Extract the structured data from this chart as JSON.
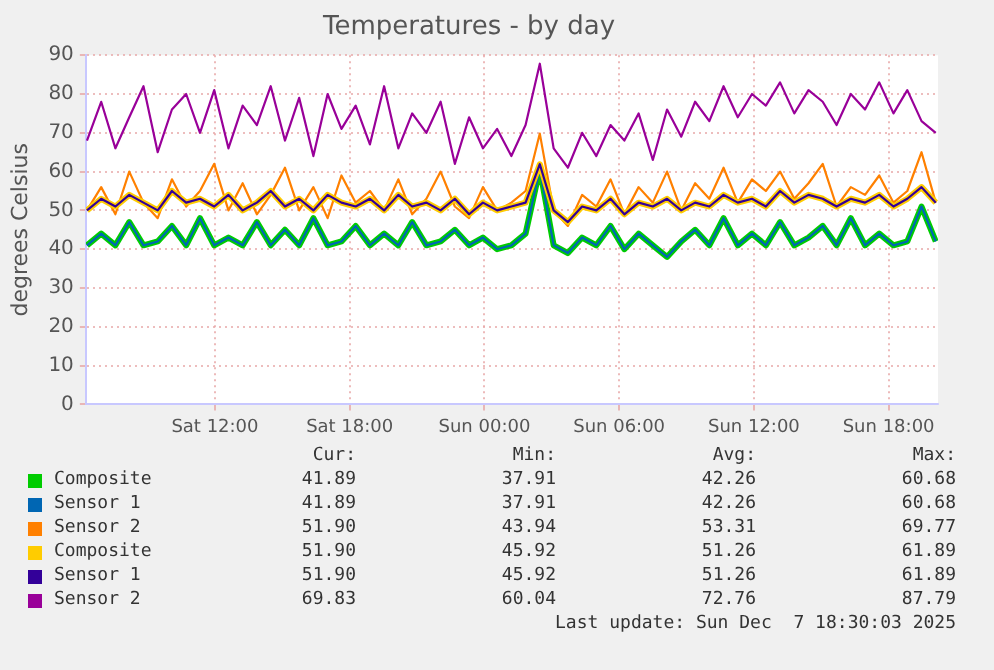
{
  "chart_data": {
    "type": "line",
    "title": "Temperatures - by day",
    "ylabel": "degrees Celsius",
    "x": [
      "2025-12-06T06:18",
      "2025-12-06T06:56",
      "2025-12-06T07:34",
      "2025-12-06T08:11",
      "2025-12-06T08:49",
      "2025-12-06T09:27",
      "2025-12-06T10:05",
      "2025-12-06T10:43",
      "2025-12-06T11:20",
      "2025-12-06T11:58",
      "2025-12-06T12:36",
      "2025-12-06T13:14",
      "2025-12-06T13:52",
      "2025-12-06T14:29",
      "2025-12-06T15:07",
      "2025-12-06T15:45",
      "2025-12-06T16:23",
      "2025-12-06T17:01",
      "2025-12-06T17:38",
      "2025-12-06T18:16",
      "2025-12-06T18:54",
      "2025-12-06T19:32",
      "2025-12-06T20:10",
      "2025-12-06T20:47",
      "2025-12-06T21:25",
      "2025-12-06T22:03",
      "2025-12-06T22:41",
      "2025-12-06T23:19",
      "2025-12-06T23:56",
      "2025-12-07T00:34",
      "2025-12-07T01:12",
      "2025-12-07T01:50",
      "2025-12-07T02:28",
      "2025-12-07T03:05",
      "2025-12-07T03:43",
      "2025-12-07T04:21",
      "2025-12-07T04:59",
      "2025-12-07T05:37",
      "2025-12-07T06:14",
      "2025-12-07T06:52",
      "2025-12-07T07:30",
      "2025-12-07T08:08",
      "2025-12-07T08:46",
      "2025-12-07T09:23",
      "2025-12-07T10:01",
      "2025-12-07T10:39",
      "2025-12-07T11:17",
      "2025-12-07T11:55",
      "2025-12-07T12:32",
      "2025-12-07T13:10",
      "2025-12-07T13:48",
      "2025-12-07T14:26",
      "2025-12-07T15:04",
      "2025-12-07T15:41",
      "2025-12-07T16:19",
      "2025-12-07T16:57",
      "2025-12-07T17:35",
      "2025-12-07T18:13",
      "2025-12-07T18:50",
      "2025-12-07T19:28",
      "2025-12-07T20:06"
    ],
    "xlim": [
      "2025-12-06T06:15",
      "2025-12-07T20:12"
    ],
    "xticks": [
      {
        "value": "2025-12-06T12:00",
        "label": "Sat 12:00"
      },
      {
        "value": "2025-12-06T18:00",
        "label": "Sat 18:00"
      },
      {
        "value": "2025-12-07T00:00",
        "label": "Sun 00:00"
      },
      {
        "value": "2025-12-07T06:00",
        "label": "Sun 06:00"
      },
      {
        "value": "2025-12-07T12:00",
        "label": "Sun 12:00"
      },
      {
        "value": "2025-12-07T18:00",
        "label": "Sun 18:00"
      }
    ],
    "ylim": [
      0,
      90
    ],
    "yticks": [
      0,
      10,
      20,
      30,
      40,
      50,
      60,
      70,
      80,
      90
    ],
    "grid": true,
    "legend": "bottom",
    "marker": "none",
    "line_style": "solid",
    "series": [
      {
        "name": "Composite",
        "color": "#00cc00",
        "values": [
          41,
          44,
          41,
          47,
          41,
          42,
          46,
          41,
          48,
          41,
          43,
          41,
          47,
          41,
          45,
          41,
          48,
          41,
          42,
          46,
          41,
          44,
          41,
          47,
          41,
          42,
          45,
          41,
          43,
          40,
          41,
          44,
          60.7,
          41,
          39,
          43,
          41,
          46,
          40,
          44,
          41,
          38,
          42,
          45,
          41,
          48,
          41,
          44,
          41,
          47,
          41,
          43,
          46,
          41,
          48,
          41,
          44,
          41,
          42,
          51,
          42
        ]
      },
      {
        "name": "Sensor 1",
        "color": "#0066b3",
        "values": [
          41,
          44,
          41,
          47,
          41,
          42,
          46,
          41,
          48,
          41,
          43,
          41,
          47,
          41,
          45,
          41,
          48,
          41,
          42,
          46,
          41,
          44,
          41,
          47,
          41,
          42,
          45,
          41,
          43,
          40,
          41,
          44,
          60.7,
          41,
          39,
          43,
          41,
          46,
          40,
          44,
          41,
          38,
          42,
          45,
          41,
          48,
          41,
          44,
          41,
          47,
          41,
          43,
          46,
          41,
          48,
          41,
          44,
          41,
          42,
          51,
          42
        ]
      },
      {
        "name": "Sensor 2",
        "color": "#ff8000",
        "values": [
          50,
          56,
          49,
          60,
          52,
          48,
          58,
          51,
          55,
          62,
          50,
          57,
          49,
          54,
          61,
          50,
          56,
          48,
          59,
          52,
          55,
          50,
          58,
          49,
          53,
          60,
          51,
          48,
          56,
          50,
          52,
          55,
          69.8,
          50,
          46,
          54,
          51,
          58,
          49,
          56,
          52,
          60,
          50,
          57,
          53,
          61,
          52,
          58,
          55,
          60,
          53,
          57,
          62,
          51,
          56,
          54,
          59,
          52,
          55,
          65,
          52
        ]
      },
      {
        "name": "Composite",
        "color": "#ffcc00",
        "values": [
          50,
          53,
          51,
          54,
          52,
          50,
          55,
          52,
          53,
          51,
          54,
          50,
          52,
          55,
          51,
          53,
          50,
          54,
          52,
          51,
          53,
          50,
          54,
          51,
          52,
          50,
          53,
          49,
          52,
          50,
          51,
          52,
          61.9,
          50,
          47,
          51,
          50,
          53,
          49,
          52,
          51,
          53,
          50,
          52,
          51,
          54,
          52,
          53,
          51,
          55,
          52,
          54,
          53,
          51,
          53,
          52,
          54,
          51,
          53,
          56,
          52
        ]
      },
      {
        "name": "Sensor 1",
        "color": "#330099",
        "values": [
          50,
          53,
          51,
          54,
          52,
          50,
          55,
          52,
          53,
          51,
          54,
          50,
          52,
          55,
          51,
          53,
          50,
          54,
          52,
          51,
          53,
          50,
          54,
          51,
          52,
          50,
          53,
          49,
          52,
          50,
          51,
          52,
          61.9,
          50,
          47,
          51,
          50,
          53,
          49,
          52,
          51,
          53,
          50,
          52,
          51,
          54,
          52,
          53,
          51,
          55,
          52,
          54,
          53,
          51,
          53,
          52,
          54,
          51,
          53,
          56,
          52
        ]
      },
      {
        "name": "Sensor 2",
        "color": "#990099",
        "values": [
          68,
          78,
          66,
          74,
          82,
          65,
          76,
          80,
          70,
          81,
          66,
          77,
          72,
          82,
          68,
          79,
          64,
          80,
          71,
          77,
          67,
          82,
          66,
          75,
          70,
          78,
          62,
          74,
          66,
          71,
          64,
          72,
          87.8,
          66,
          61,
          70,
          64,
          72,
          68,
          75,
          63,
          76,
          69,
          78,
          73,
          82,
          74,
          80,
          77,
          83,
          75,
          81,
          78,
          72,
          80,
          76,
          83,
          75,
          81,
          73,
          70
        ]
      }
    ],
    "annotations": [
      "Cur:",
      "Min:",
      "Avg:",
      "Max:",
      "41.89",
      "37.91",
      "42.26",
      "60.68",
      "41.89",
      "37.91",
      "42.26",
      "60.68",
      "51.90",
      "43.94",
      "53.31",
      "69.77",
      "51.90",
      "45.92",
      "51.26",
      "61.89",
      "51.90",
      "45.92",
      "51.26",
      "61.89",
      "69.83",
      "60.04",
      "72.76",
      "87.79",
      "Last update: Sun Dec  7 18:30:03 2025"
    ]
  }
}
